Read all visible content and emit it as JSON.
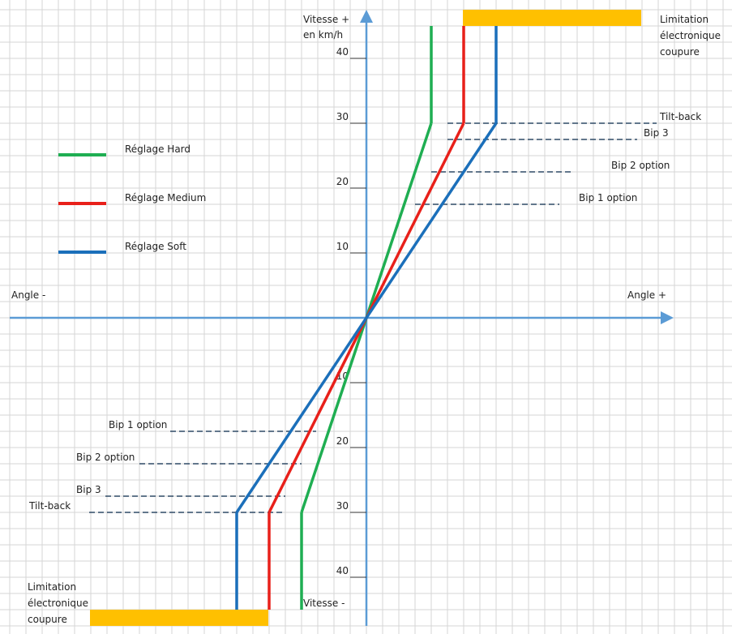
{
  "colors": {
    "grid": "#d6d6d6",
    "axis": "#5b9bd5",
    "hard": "#1fae52",
    "medium": "#e8201a",
    "soft": "#1b6fba",
    "limit_bar": "#ffc000",
    "dash": "#2f4a66"
  },
  "axes": {
    "y_top_label_1": "Vitesse +",
    "y_top_label_2": "en km/h",
    "y_bottom_label": "Vitesse -",
    "x_left_label": "Angle -",
    "x_right_label": "Angle +",
    "ticks_up": [
      "10",
      "20",
      "30",
      "40"
    ],
    "ticks_down": [
      "10",
      "20",
      "30",
      "40"
    ]
  },
  "legend": {
    "hard": "Réglage Hard",
    "medium": "Réglage Medium",
    "soft": "Réglage Soft"
  },
  "top_annotations": {
    "limit_1": "Limitation",
    "limit_2": "électronique",
    "limit_3": "coupure",
    "tilt": "Tilt-back",
    "bip3": "Bip 3",
    "bip2": "Bip 2 option",
    "bip1": "Bip 1 option"
  },
  "bottom_annotations": {
    "limit_1": "Limitation",
    "limit_2": "électronique",
    "limit_3": "coupure",
    "tilt": "Tilt-back",
    "bip3": "Bip 3",
    "bip2": "Bip 2 option",
    "bip1": "Bip 1 option"
  },
  "chart_data": {
    "type": "line",
    "speed_ticks": [
      10,
      20,
      30,
      40
    ],
    "thresholds_kmh": {
      "bip1_option": 17.5,
      "bip2_option": 22.5,
      "bip3": 27.5,
      "tilt_back": 30
    },
    "series": [
      {
        "name": "Réglage Hard",
        "color": "#1fae52",
        "angle_at_30": 2,
        "points": [
          [
            -2,
            -30
          ],
          [
            0,
            0
          ],
          [
            2,
            30
          ]
        ]
      },
      {
        "name": "Réglage Medium",
        "color": "#e8201a",
        "angle_at_30": 3,
        "points": [
          [
            -3,
            -30
          ],
          [
            0,
            0
          ],
          [
            3,
            30
          ]
        ]
      },
      {
        "name": "Réglage Soft",
        "color": "#1b6fba",
        "angle_at_30": 4,
        "points": [
          [
            -4,
            -30
          ],
          [
            0,
            0
          ],
          [
            4,
            30
          ]
        ]
      }
    ]
  }
}
